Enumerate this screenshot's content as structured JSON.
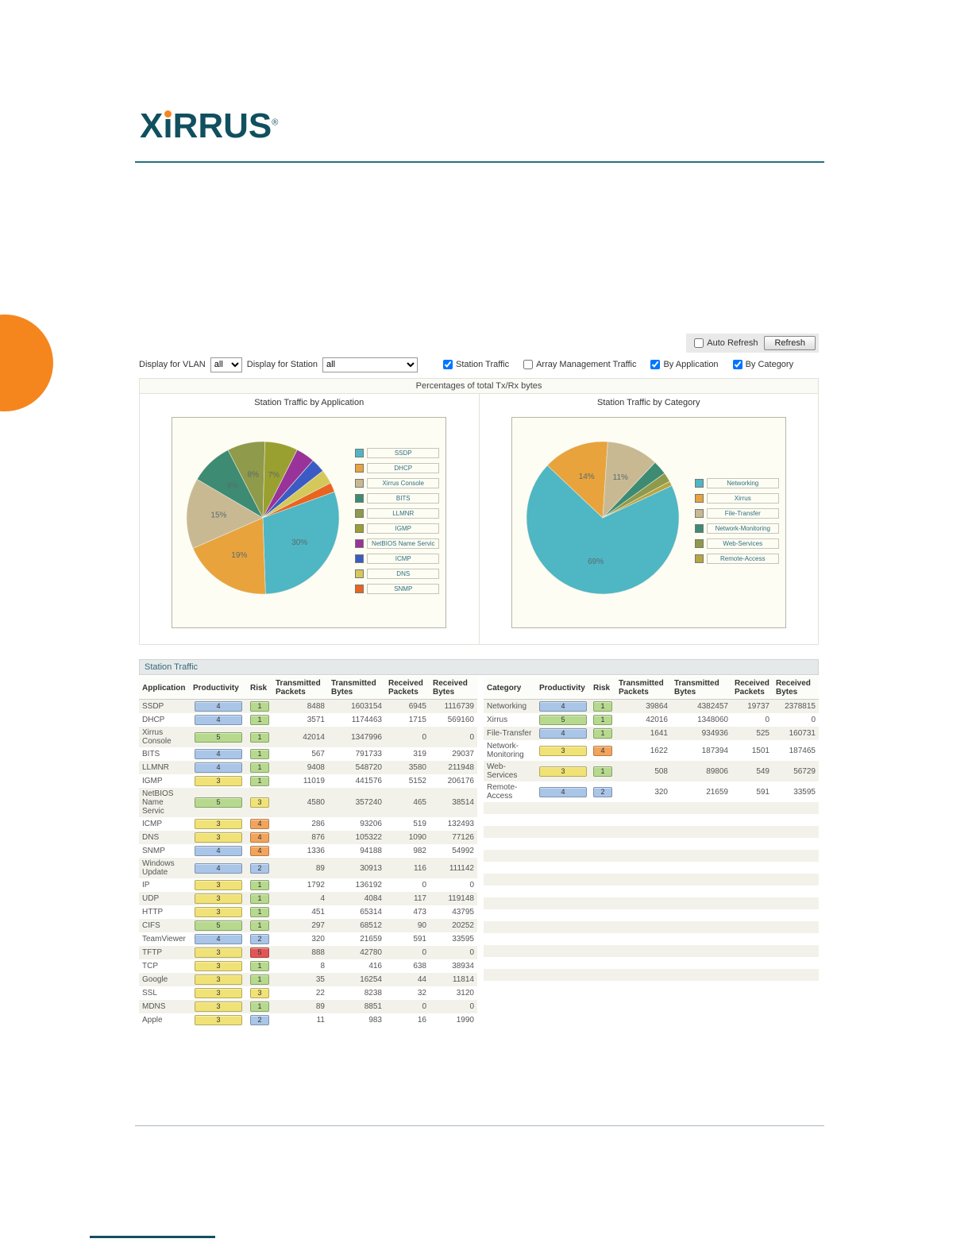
{
  "logo": {
    "part1": "X",
    "part2": "ı",
    "part3": "RRUS",
    "registered": "®"
  },
  "toolbar": {
    "auto_refresh_label": "Auto Refresh",
    "auto_refresh_checked": false,
    "refresh_button": "Refresh"
  },
  "controls": {
    "vlan_label": "Display for VLAN",
    "vlan_value": "all",
    "station_label": "Display for Station",
    "station_value": "all",
    "checkboxes": [
      {
        "label": "Station Traffic",
        "checked": true
      },
      {
        "label": "Array Management Traffic",
        "checked": false
      },
      {
        "label": "By Application",
        "checked": true
      },
      {
        "label": "By Category",
        "checked": true
      }
    ]
  },
  "charts_header": "Percentages of total Tx/Rx bytes",
  "section_title": "Station Traffic",
  "chart_data": [
    {
      "type": "pie",
      "title": "Station Traffic by Application",
      "labels": [
        "SSDP",
        "DHCP",
        "Xirrus Console",
        "BITS",
        "LLMNR",
        "IGMP",
        "NetBIOS Name Servic",
        "ICMP",
        "DNS",
        "SNMP"
      ],
      "values": [
        30,
        19,
        15,
        9,
        8,
        7,
        4,
        3,
        3,
        2
      ],
      "colors": [
        "#4fb6c3",
        "#e8a33d",
        "#c9b992",
        "#3d8b72",
        "#8f9a4a",
        "#9aa02f",
        "#993399",
        "#3b5bc4",
        "#d4c85a",
        "#e8641f"
      ],
      "start_angle": -20,
      "label_min_pct": 7,
      "legend_position": "right"
    },
    {
      "type": "pie",
      "title": "Station Traffic by Category",
      "labels": [
        "Networking",
        "Xirrus",
        "File-Transfer",
        "Network-Monitoring",
        "Web-Services",
        "Remote-Access"
      ],
      "values": [
        69,
        14,
        11,
        3,
        2,
        1
      ],
      "colors": [
        "#4fb6c3",
        "#e8a33d",
        "#c9b992",
        "#3d8b72",
        "#8f9a4a",
        "#b5a642"
      ],
      "start_angle": -25,
      "label_min_pct": 10,
      "legend_position": "right"
    }
  ],
  "tables": {
    "application": {
      "headers": [
        "Application",
        "Productivity",
        "Risk",
        "Transmitted Packets",
        "Transmitted Bytes",
        "Received Packets",
        "Received Bytes"
      ],
      "rows": [
        [
          "SSDP",
          "4",
          "1",
          "8488",
          "1603154",
          "6945",
          "1116739"
        ],
        [
          "DHCP",
          "4",
          "1",
          "3571",
          "1174463",
          "1715",
          "569160"
        ],
        [
          "Xirrus Console",
          "5",
          "1",
          "42014",
          "1347996",
          "0",
          "0"
        ],
        [
          "BITS",
          "4",
          "1",
          "567",
          "791733",
          "319",
          "29037"
        ],
        [
          "LLMNR",
          "4",
          "1",
          "9408",
          "548720",
          "3580",
          "211948"
        ],
        [
          "IGMP",
          "3",
          "1",
          "11019",
          "441576",
          "5152",
          "206176"
        ],
        [
          "NetBIOS Name Servic",
          "5",
          "3",
          "4580",
          "357240",
          "465",
          "38514"
        ],
        [
          "ICMP",
          "3",
          "4",
          "286",
          "93206",
          "519",
          "132493"
        ],
        [
          "DNS",
          "3",
          "4",
          "876",
          "105322",
          "1090",
          "77126"
        ],
        [
          "SNMP",
          "4",
          "4",
          "1336",
          "94188",
          "982",
          "54992"
        ],
        [
          "Windows Update",
          "4",
          "2",
          "89",
          "30913",
          "116",
          "111142"
        ],
        [
          "IP",
          "3",
          "1",
          "1792",
          "136192",
          "0",
          "0"
        ],
        [
          "UDP",
          "3",
          "1",
          "4",
          "4084",
          "117",
          "119148"
        ],
        [
          "HTTP",
          "3",
          "1",
          "451",
          "65314",
          "473",
          "43795"
        ],
        [
          "CIFS",
          "5",
          "1",
          "297",
          "68512",
          "90",
          "20252"
        ],
        [
          "TeamViewer",
          "4",
          "2",
          "320",
          "21659",
          "591",
          "33595"
        ],
        [
          "TFTP",
          "3",
          "5",
          "888",
          "42780",
          "0",
          "0"
        ],
        [
          "TCP",
          "3",
          "1",
          "8",
          "416",
          "638",
          "38934"
        ],
        [
          "Google",
          "3",
          "1",
          "35",
          "16254",
          "44",
          "11814"
        ],
        [
          "SSL",
          "3",
          "3",
          "22",
          "8238",
          "32",
          "3120"
        ],
        [
          "MDNS",
          "3",
          "1",
          "89",
          "8851",
          "0",
          "0"
        ],
        [
          "Apple",
          "3",
          "2",
          "11",
          "983",
          "16",
          "1990"
        ]
      ]
    },
    "category": {
      "headers": [
        "Category",
        "Productivity",
        "Risk",
        "Transmitted Packets",
        "Transmitted Bytes",
        "Received Packets",
        "Received Bytes"
      ],
      "rows": [
        [
          "Networking",
          "4",
          "1",
          "39864",
          "4382457",
          "19737",
          "2378815"
        ],
        [
          "Xirrus",
          "5",
          "1",
          "42016",
          "1348060",
          "0",
          "0"
        ],
        [
          "File-Transfer",
          "4",
          "1",
          "1641",
          "934936",
          "525",
          "160731"
        ],
        [
          "Network-Monitoring",
          "3",
          "4",
          "1622",
          "187394",
          "1501",
          "187465"
        ],
        [
          "Web-Services",
          "3",
          "1",
          "508",
          "89806",
          "549",
          "56729"
        ],
        [
          "Remote-Access",
          "4",
          "2",
          "320",
          "21659",
          "591",
          "33595"
        ]
      ]
    }
  },
  "colors": {
    "brand_teal": "#10505e",
    "accent_orange": "#f5871f",
    "badge_productivity": {
      "3": "#f0e276",
      "4": "#a9c5e8",
      "5": "#b6d98e"
    },
    "badge_risk": {
      "1": "#b6d98e",
      "2": "#a9c5e8",
      "3": "#f0e276",
      "4": "#f2a45c",
      "5": "#e25555"
    }
  }
}
